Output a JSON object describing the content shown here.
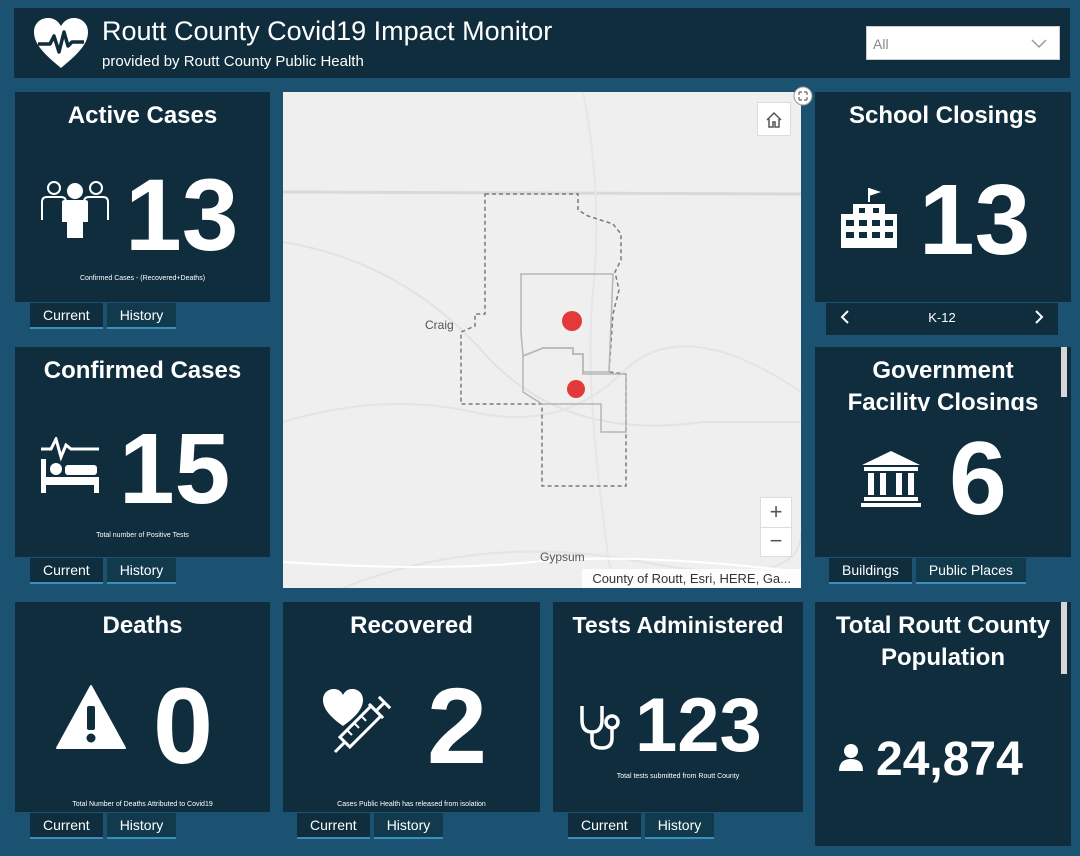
{
  "header": {
    "title": "Routt County Covid19 Impact Monitor",
    "subtitle": "provided by Routt County Public Health",
    "logo_icon": "heart-pulse-icon",
    "filter": {
      "selected": "All"
    }
  },
  "active_cases": {
    "title": "Active Cases",
    "value": "13",
    "caption": "Confirmed Cases - (Recovered+Deaths)",
    "icon": "people-icon",
    "tabs": [
      "Current",
      "History"
    ]
  },
  "confirmed_cases": {
    "title": "Confirmed Cases",
    "value": "15",
    "caption": "Total number of Positive Tests",
    "icon": "hospital-bed-icon",
    "tabs": [
      "Current",
      "History"
    ]
  },
  "deaths": {
    "title": "Deaths",
    "value": "0",
    "caption": "Total Number of Deaths Attributed to Covid19",
    "icon": "warning-icon",
    "tabs": [
      "Current",
      "History"
    ]
  },
  "recovered": {
    "title": "Recovered",
    "value": "2",
    "caption": "Cases Public Health has released from isolation",
    "icon": "heart-syringe-icon",
    "tabs": [
      "Current",
      "History"
    ]
  },
  "tests": {
    "title": "Tests Administered",
    "value": "123",
    "caption": "Total tests submitted from Routt County",
    "icon": "stethoscope-icon",
    "tabs": [
      "Current",
      "History"
    ]
  },
  "schools": {
    "title": "School Closings",
    "value": "13",
    "icon": "school-icon",
    "nav_label": "K-12"
  },
  "government": {
    "title_line1": "Government",
    "title_line2": "Facility Closings",
    "value": "6",
    "icon": "government-building-icon",
    "tabs": [
      "Buildings",
      "Public Places"
    ]
  },
  "population": {
    "title_line1": "Total Routt County",
    "title_line2": "Population",
    "value": "24,874",
    "icon": "person-icon"
  },
  "map": {
    "labels": {
      "craig": "Craig",
      "gypsum": "Gypsum"
    },
    "attribution": "County of Routt, Esri, HERE, Ga...",
    "zoom_in": "+",
    "zoom_out": "−",
    "colors": {
      "marker": "#e23a3a",
      "background": "#efefef"
    }
  },
  "colors": {
    "page_bg": "#1b5271",
    "panel_bg": "#0f2d3c",
    "tab_accent": "#3d8fbb"
  }
}
